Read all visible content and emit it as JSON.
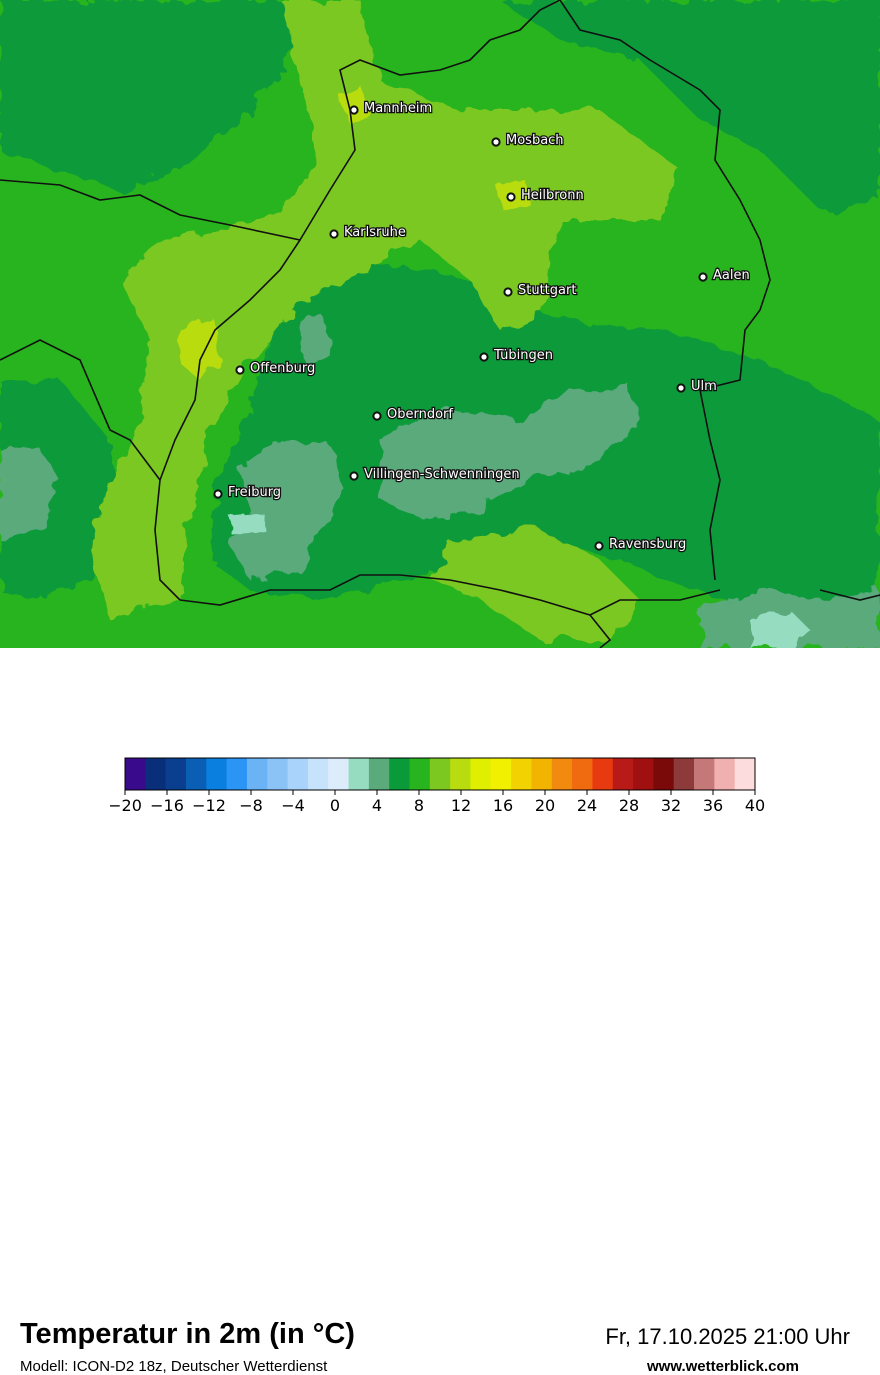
{
  "map": {
    "cities": [
      {
        "name": "Mannheim"
      },
      {
        "name": "Mosbach"
      },
      {
        "name": "Heilbronn"
      },
      {
        "name": "Karlsruhe"
      },
      {
        "name": "Aalen"
      },
      {
        "name": "Stuttgart"
      },
      {
        "name": "Tübingen"
      },
      {
        "name": "Offenburg"
      },
      {
        "name": "Ulm"
      },
      {
        "name": "Oberndorf"
      },
      {
        "name": "Villingen-Schwenningen"
      },
      {
        "name": "Freiburg"
      },
      {
        "name": "Ravensburg"
      }
    ]
  },
  "footer": {
    "title": "Temperatur in 2m (in °C)",
    "subtitle": "Modell: ICON-D2 18z, Deutscher Wetterdienst",
    "datetime": "Fr, 17.10.2025 21:00 Uhr",
    "source": "www.wetterblick.com"
  },
  "legend": {
    "colors": [
      "#3a0a8c",
      "#0a2f7a",
      "#0a3f8f",
      "#0a5fb4",
      "#0a7fe0",
      "#2a95f5",
      "#6ab3f5",
      "#8cc3f7",
      "#a9d3fa",
      "#c7e2fb",
      "#dcecfb",
      "#96dcc0",
      "#5aaa7c",
      "#0a9a3a",
      "#28b41e",
      "#7cc820",
      "#b8dc10",
      "#e0ee00",
      "#f0f000",
      "#f2d200",
      "#f2b400",
      "#f28a10",
      "#f06a10",
      "#e83a10",
      "#b81a18",
      "#a01010",
      "#7a0a0a",
      "#8c3a3a",
      "#c47878",
      "#f0b0b0",
      "#fcdcdc"
    ],
    "tick_labels": [
      "−20",
      "−16",
      "−12",
      "−8",
      "−4",
      "0",
      "4",
      "8",
      "12",
      "16",
      "20",
      "24",
      "28",
      "32",
      "36",
      "40"
    ]
  }
}
